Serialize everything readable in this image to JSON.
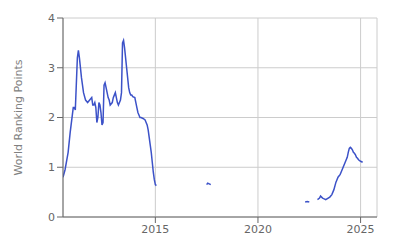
{
  "chart_data": {
    "type": "line",
    "ylabel": "World Ranking Points",
    "color": "#3c52c8",
    "grid": true,
    "xlim": [
      2010.5,
      2025.8
    ],
    "xticks": [
      2015,
      2020,
      2025
    ],
    "ylim": [
      0,
      4
    ],
    "yticks": [
      0,
      1,
      2,
      3,
      4
    ],
    "x": [
      2010.5,
      2010.6,
      2010.75,
      2010.85,
      2011.0,
      2011.05,
      2011.1,
      2011.2,
      2011.25,
      2011.3,
      2011.4,
      2011.5,
      2011.6,
      2011.7,
      2011.8,
      2011.9,
      2011.95,
      2012.0,
      2012.05,
      2012.1,
      2012.15,
      2012.2,
      2012.25,
      2012.3,
      2012.35,
      2012.4,
      2012.45,
      2012.5,
      2012.55,
      2012.6,
      2012.65,
      2012.7,
      2012.75,
      2012.8,
      2012.9,
      2012.95,
      2013.0,
      2013.05,
      2013.1,
      2013.15,
      2013.2,
      2013.3,
      2013.35,
      2013.4,
      2013.45,
      2013.5,
      2013.6,
      2013.7,
      2013.75,
      2013.8,
      2013.85,
      2013.9,
      2014.0,
      2014.05,
      2014.1,
      2014.15,
      2014.2,
      2014.25,
      2014.3,
      2014.4,
      2014.5,
      2014.55,
      2014.6,
      2014.65,
      2014.7,
      2014.75,
      2014.8,
      2014.85,
      2014.9,
      2014.95,
      2015.0,
      2015.05,
      null,
      2017.5,
      2017.55,
      2017.6,
      2017.65,
      2017.7,
      null,
      2022.3,
      2022.4,
      2022.5,
      null,
      2022.9,
      2023.0,
      2023.05,
      2023.1,
      2023.15,
      2023.2,
      2023.25,
      2023.3,
      2023.5,
      2023.6,
      2023.65,
      2023.7,
      2023.8,
      2023.85,
      2023.9,
      2024.0,
      2024.05,
      2024.1,
      2024.15,
      2024.2,
      2024.25,
      2024.3,
      2024.35,
      2024.4,
      2024.45,
      2024.5,
      2024.55,
      2024.6,
      2024.65,
      2024.7,
      2024.75,
      2024.8,
      2024.85,
      2024.9,
      2025.0,
      2025.1
    ],
    "values": [
      0.8,
      0.95,
      1.3,
      1.7,
      2.2,
      2.2,
      2.15,
      3.2,
      3.35,
      3.2,
      2.8,
      2.5,
      2.35,
      2.3,
      2.35,
      2.4,
      2.25,
      2.25,
      2.3,
      2.2,
      1.9,
      2.0,
      2.3,
      2.25,
      2.1,
      1.85,
      1.9,
      2.65,
      2.7,
      2.6,
      2.5,
      2.4,
      2.35,
      2.25,
      2.3,
      2.4,
      2.45,
      2.5,
      2.4,
      2.3,
      2.25,
      2.35,
      2.5,
      3.5,
      3.55,
      3.4,
      3.0,
      2.6,
      2.5,
      2.45,
      2.45,
      2.42,
      2.4,
      2.3,
      2.2,
      2.1,
      2.05,
      2.0,
      2.0,
      1.98,
      1.95,
      1.9,
      1.85,
      1.75,
      1.6,
      1.45,
      1.3,
      1.1,
      0.9,
      0.75,
      0.65,
      0.63,
      null,
      0.65,
      0.68,
      0.67,
      0.66,
      0.65,
      null,
      0.3,
      0.31,
      0.3,
      null,
      0.35,
      0.38,
      0.42,
      0.4,
      0.38,
      0.37,
      0.36,
      0.35,
      0.4,
      0.45,
      0.5,
      0.55,
      0.7,
      0.75,
      0.8,
      0.85,
      0.9,
      0.95,
      1.0,
      1.05,
      1.1,
      1.15,
      1.2,
      1.3,
      1.38,
      1.4,
      1.38,
      1.35,
      1.3,
      1.28,
      1.25,
      1.2,
      1.18,
      1.15,
      1.12,
      1.1
    ]
  }
}
